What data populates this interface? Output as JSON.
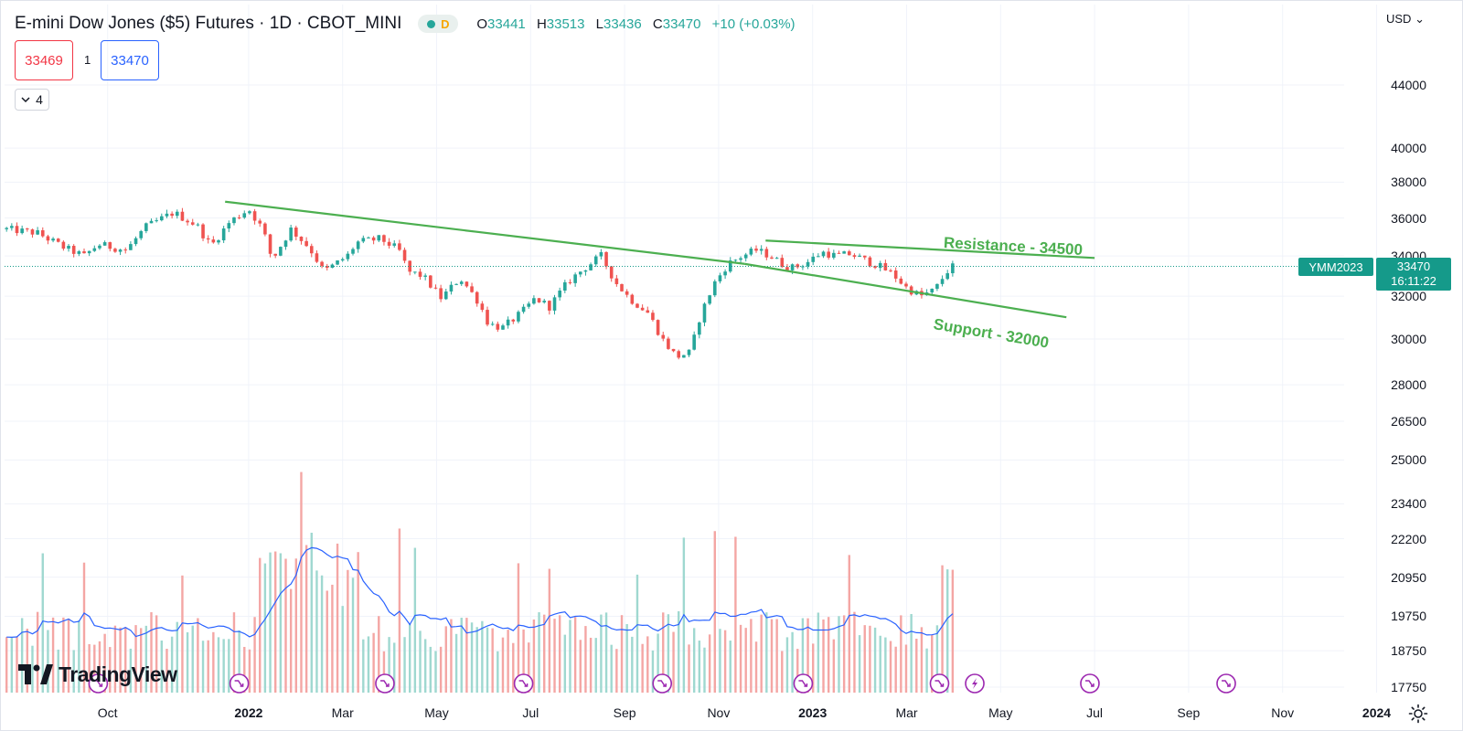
{
  "header": {
    "title": "E-mini Dow Jones ($5) Futures · 1D · CBOT_MINI",
    "status_letter": "D",
    "ohlc": {
      "o_label": "O",
      "o": "33441",
      "h_label": "H",
      "h": "33513",
      "l_label": "L",
      "l": "33436",
      "c_label": "C",
      "c": "33470",
      "change": "+10 (+0.03%)"
    }
  },
  "trade": {
    "sell": "33469",
    "spread": "1",
    "buy": "33470"
  },
  "indicators_toggle": {
    "count": "4"
  },
  "currency": "USD",
  "price_tag": {
    "symbol": "YMM2023",
    "price": "33470",
    "countdown": "16:11:22"
  },
  "logo_text": "TradingView",
  "colors": {
    "up": "#26a69a",
    "down": "#ef5350",
    "trend": "#4caf50",
    "ma": "#2962ff",
    "event": "#9c27b0"
  },
  "chart_data": {
    "type": "candlestick",
    "title": "E-mini Dow Jones ($5) Futures · 1D · CBOT_MINI",
    "price_axis": {
      "scale": "log",
      "ticks": [
        44000,
        40000,
        38000,
        36000,
        34000,
        32000,
        30000,
        28000,
        26500,
        25000,
        23400,
        22200,
        20950,
        19750,
        18750,
        17750
      ]
    },
    "time_axis": {
      "labels": [
        {
          "t": 0.5,
          "label": "Oct",
          "bold": false
        },
        {
          "t": 3.5,
          "label": "2022",
          "bold": true
        },
        {
          "t": 5.5,
          "label": "Mar",
          "bold": false
        },
        {
          "t": 7.5,
          "label": "May",
          "bold": false
        },
        {
          "t": 9.5,
          "label": "Jul",
          "bold": false
        },
        {
          "t": 11.5,
          "label": "Sep",
          "bold": false
        },
        {
          "t": 13.5,
          "label": "Nov",
          "bold": false
        },
        {
          "t": 15.5,
          "label": "2023",
          "bold": true
        },
        {
          "t": 17.5,
          "label": "Mar",
          "bold": false
        },
        {
          "t": 19.5,
          "label": "May",
          "bold": false
        },
        {
          "t": 21.5,
          "label": "Jul",
          "bold": false
        },
        {
          "t": 23.5,
          "label": "Sep",
          "bold": false
        },
        {
          "t": 25.5,
          "label": "Nov",
          "bold": false
        },
        {
          "t": 27.5,
          "label": "2024",
          "bold": true
        }
      ]
    },
    "price_path": [
      [
        -1.65,
        35400
      ],
      [
        -1.0,
        35200
      ],
      [
        -0.4,
        34400
      ],
      [
        0.0,
        34000
      ],
      [
        0.3,
        34600
      ],
      [
        0.9,
        34300
      ],
      [
        1.3,
        35500
      ],
      [
        1.9,
        36300
      ],
      [
        2.4,
        35600
      ],
      [
        2.7,
        34500
      ],
      [
        3.1,
        35800
      ],
      [
        3.5,
        36500
      ],
      [
        3.8,
        35400
      ],
      [
        4.0,
        33800
      ],
      [
        4.4,
        35400
      ],
      [
        4.8,
        34400
      ],
      [
        5.1,
        33200
      ],
      [
        5.6,
        34000
      ],
      [
        5.8,
        34700
      ],
      [
        6.3,
        34900
      ],
      [
        6.7,
        34300
      ],
      [
        6.9,
        33200
      ],
      [
        7.2,
        33000
      ],
      [
        7.6,
        31900
      ],
      [
        8.0,
        32900
      ],
      [
        8.4,
        31700
      ],
      [
        8.6,
        30700
      ],
      [
        8.9,
        30500
      ],
      [
        9.3,
        31200
      ],
      [
        9.6,
        31900
      ],
      [
        9.9,
        31500
      ],
      [
        10.3,
        32700
      ],
      [
        10.6,
        33300
      ],
      [
        11.0,
        34000
      ],
      [
        11.3,
        32700
      ],
      [
        11.6,
        31900
      ],
      [
        12.0,
        31200
      ],
      [
        12.3,
        30000
      ],
      [
        12.6,
        29200
      ],
      [
        12.9,
        29400
      ],
      [
        13.1,
        31000
      ],
      [
        13.4,
        32600
      ],
      [
        13.7,
        33600
      ],
      [
        14.0,
        34000
      ],
      [
        14.3,
        34300
      ],
      [
        14.6,
        34000
      ],
      [
        14.9,
        33500
      ],
      [
        15.1,
        33400
      ],
      [
        15.4,
        33700
      ],
      [
        15.7,
        34200
      ],
      [
        16.0,
        34000
      ],
      [
        16.3,
        34100
      ],
      [
        16.6,
        33800
      ],
      [
        16.9,
        33500
      ],
      [
        17.2,
        33100
      ],
      [
        17.5,
        32400
      ],
      [
        17.8,
        32000
      ],
      [
        18.1,
        32300
      ],
      [
        18.35,
        33200
      ],
      [
        18.5,
        33500
      ]
    ],
    "volume_peaks_approx": [
      20950,
      22200
    ],
    "trendlines": [
      {
        "name": "long-downtrend",
        "from": {
          "t": 3.0,
          "price": 36900
        },
        "to": {
          "t": 14.05,
          "price": 33600
        }
      },
      {
        "name": "support",
        "label": "Support - 32000",
        "from": {
          "t": 14.05,
          "price": 33600
        },
        "to": {
          "t": 20.9,
          "price": 31000
        }
      },
      {
        "name": "resistance",
        "label": "Resistance - 34500",
        "from": {
          "t": 14.5,
          "price": 34800
        },
        "to": {
          "t": 21.5,
          "price": 33900
        }
      }
    ],
    "last_price": 33470,
    "event_markers": [
      {
        "t": 0.3,
        "type": "split"
      },
      {
        "t": 3.3,
        "type": "split"
      },
      {
        "t": 6.4,
        "type": "split"
      },
      {
        "t": 9.35,
        "type": "split"
      },
      {
        "t": 12.3,
        "type": "split"
      },
      {
        "t": 15.3,
        "type": "split"
      },
      {
        "t": 18.2,
        "type": "split"
      },
      {
        "t": 18.95,
        "type": "earnings"
      },
      {
        "t": 21.4,
        "type": "split"
      },
      {
        "t": 24.3,
        "type": "split"
      }
    ]
  }
}
